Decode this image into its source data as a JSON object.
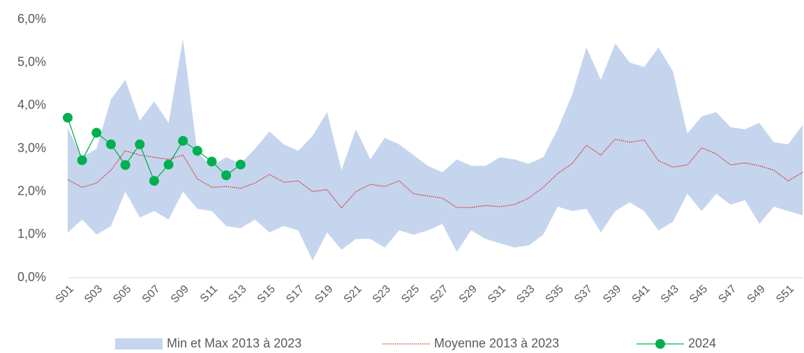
{
  "chart_data": {
    "type": "band-line",
    "categories": [
      "S01",
      null,
      "S03",
      null,
      "S05",
      null,
      "S07",
      null,
      "S09",
      null,
      "S11",
      null,
      "S13",
      null,
      "S15",
      null,
      "S17",
      null,
      "S19",
      null,
      "S21",
      null,
      "S23",
      null,
      "S25",
      null,
      "S27",
      null,
      "S29",
      null,
      "S31",
      null,
      "S33",
      null,
      "S35",
      null,
      "S37",
      null,
      "S39",
      null,
      "S41",
      null,
      "S43",
      null,
      "S45",
      null,
      "S47",
      null,
      "S49",
      null,
      "S51",
      null
    ],
    "ylim": [
      0,
      6.1
    ],
    "yticks": [
      {
        "value": 0,
        "label": "0,0%"
      },
      {
        "value": 1,
        "label": "1,0%"
      },
      {
        "value": 2,
        "label": "2,0%"
      },
      {
        "value": 3,
        "label": "3,0%"
      },
      {
        "value": 4,
        "label": "4,0%"
      },
      {
        "value": 5,
        "label": "5,0%"
      },
      {
        "value": 6,
        "label": "6,0%"
      }
    ],
    "series": [
      {
        "name": "Min et Max 2013 à 2023",
        "kind": "band",
        "color": "#c5d5ee",
        "high": [
          3.48,
          2.8,
          3.0,
          4.15,
          4.6,
          3.65,
          4.1,
          3.6,
          5.55,
          2.9,
          2.6,
          2.8,
          2.65,
          3.0,
          3.4,
          3.1,
          2.95,
          3.3,
          3.85,
          2.5,
          3.45,
          2.75,
          3.25,
          3.1,
          2.85,
          2.6,
          2.45,
          2.75,
          2.6,
          2.6,
          2.8,
          2.75,
          2.65,
          2.8,
          3.45,
          4.25,
          5.35,
          4.6,
          5.45,
          5.0,
          4.9,
          5.35,
          4.8,
          3.35,
          3.75,
          3.85,
          3.5,
          3.45,
          3.6,
          3.15,
          3.1,
          3.55
        ],
        "low": [
          1.05,
          1.35,
          1.0,
          1.2,
          2.0,
          1.4,
          1.55,
          1.35,
          2.0,
          1.6,
          1.55,
          1.2,
          1.15,
          1.35,
          1.05,
          1.2,
          1.1,
          0.4,
          1.05,
          0.65,
          0.9,
          0.9,
          0.7,
          1.1,
          1.0,
          1.1,
          1.25,
          0.6,
          1.1,
          0.9,
          0.8,
          0.7,
          0.75,
          1.0,
          1.65,
          1.55,
          1.6,
          1.05,
          1.55,
          1.75,
          1.55,
          1.1,
          1.3,
          1.95,
          1.55,
          1.95,
          1.7,
          1.8,
          1.25,
          1.65,
          1.55,
          1.45
        ]
      },
      {
        "name": "Moyenne 2013 à 2023",
        "kind": "dotted",
        "color": "#e0201c",
        "values": [
          2.28,
          2.1,
          2.2,
          2.5,
          2.95,
          2.85,
          2.8,
          2.75,
          2.85,
          2.3,
          2.1,
          2.12,
          2.08,
          2.2,
          2.4,
          2.22,
          2.25,
          2.0,
          2.05,
          1.62,
          2.0,
          2.17,
          2.12,
          2.25,
          1.95,
          1.9,
          1.85,
          1.63,
          1.63,
          1.68,
          1.65,
          1.7,
          1.85,
          2.1,
          2.42,
          2.65,
          3.08,
          2.85,
          3.22,
          3.15,
          3.2,
          2.72,
          2.57,
          2.62,
          3.02,
          2.88,
          2.62,
          2.67,
          2.6,
          2.5,
          2.25,
          2.45
        ]
      },
      {
        "name": "2024",
        "kind": "marker-line",
        "color": "#00b050",
        "values": [
          3.72,
          2.73,
          3.37,
          3.1,
          2.62,
          3.1,
          2.25,
          2.63,
          3.18,
          2.95,
          2.7,
          2.38,
          2.63,
          null,
          null,
          null,
          null,
          null,
          null,
          null,
          null,
          null,
          null,
          null,
          null,
          null,
          null,
          null,
          null,
          null,
          null,
          null,
          null,
          null,
          null,
          null,
          null,
          null,
          null,
          null,
          null,
          null,
          null,
          null,
          null,
          null,
          null,
          null,
          null,
          null,
          null,
          null
        ]
      }
    ]
  }
}
